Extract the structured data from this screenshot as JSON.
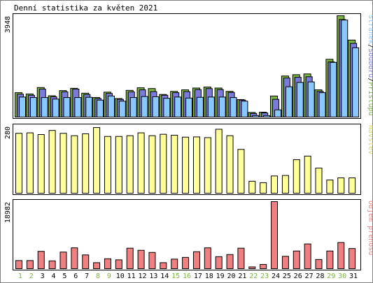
{
  "chart_data": {
    "type": "bar",
    "title": "Denní statistika za květen 2021",
    "categories": [
      "1",
      "2",
      "3",
      "4",
      "5",
      "6",
      "7",
      "8",
      "9",
      "10",
      "11",
      "12",
      "13",
      "14",
      "15",
      "16",
      "17",
      "18",
      "19",
      "20",
      "21",
      "22",
      "23",
      "24",
      "25",
      "26",
      "27",
      "28",
      "29",
      "30",
      "31"
    ],
    "weekend_days": [
      "1",
      "2",
      "8",
      "9",
      "15",
      "16",
      "22",
      "23",
      "29",
      "30"
    ],
    "panels": [
      {
        "id": "hits",
        "ymax_label": "3948",
        "ylim": [
          0,
          3948
        ],
        "legend": [
          "Stránek",
          "/",
          "Souborů",
          "/",
          "Přístupů"
        ],
        "series": [
          {
            "name": "Přístupů",
            "color": "#7cb342",
            "values": [
              950,
              900,
              1150,
              830,
              1030,
              1120,
              930,
              760,
              970,
              720,
              1040,
              1140,
              1110,
              880,
              1000,
              1060,
              1130,
              1170,
              1130,
              1000,
              680,
              180,
              190,
              820,
              1600,
              1650,
              1680,
              1060,
              2250,
              3948,
              3000
            ]
          },
          {
            "name": "Souborů",
            "color": "#7b7bdb",
            "values": [
              890,
              850,
              1090,
              790,
              980,
              1090,
              880,
              720,
              920,
              690,
              980,
              1060,
              990,
              850,
              950,
              990,
              1070,
              1110,
              1070,
              960,
              660,
              140,
              160,
              690,
              1520,
              1550,
              1570,
              1000,
              2150,
              3800,
              2870
            ]
          },
          {
            "name": "Stránek",
            "color": "#89c8ff",
            "values": [
              780,
              760,
              760,
              700,
              760,
              760,
              770,
              660,
              820,
              620,
              760,
              800,
              790,
              730,
              780,
              740,
              770,
              780,
              780,
              760,
              620,
              60,
              60,
              280,
              1180,
              1350,
              1370,
              950,
              2130,
              3780,
              2700
            ]
          }
        ]
      },
      {
        "id": "visits",
        "ymax_label": "280",
        "ylim": [
          0,
          280
        ],
        "legend": [
          "Návštěv"
        ],
        "series": [
          {
            "name": "Návštěv",
            "color": "#ffff99",
            "values": [
              250,
              252,
              245,
              262,
              250,
              240,
              248,
              274,
              237,
              237,
              240,
              252,
              240,
              246,
              242,
              234,
              235,
              232,
              267,
              240,
              183,
              50,
              44,
              72,
              74,
              140,
              155,
              105,
              55,
              64,
              64
            ]
          }
        ]
      },
      {
        "id": "traffic",
        "ymax_label": "18982",
        "ylim": [
          0,
          18982
        ],
        "legend": [
          "Objem přenosu"
        ],
        "series": [
          {
            "name": "Objem přenosu",
            "color": "#f08080",
            "values": [
              2300,
              2300,
              4900,
              2200,
              4700,
              5900,
              3900,
              1700,
              2800,
              2500,
              5800,
              5200,
              4600,
              1700,
              2700,
              3200,
              4800,
              5900,
              3400,
              4000,
              5800,
              500,
              1200,
              18982,
              3500,
              5000,
              7000,
              2600,
              5000,
              7400,
              5700
            ]
          }
        ]
      }
    ]
  }
}
